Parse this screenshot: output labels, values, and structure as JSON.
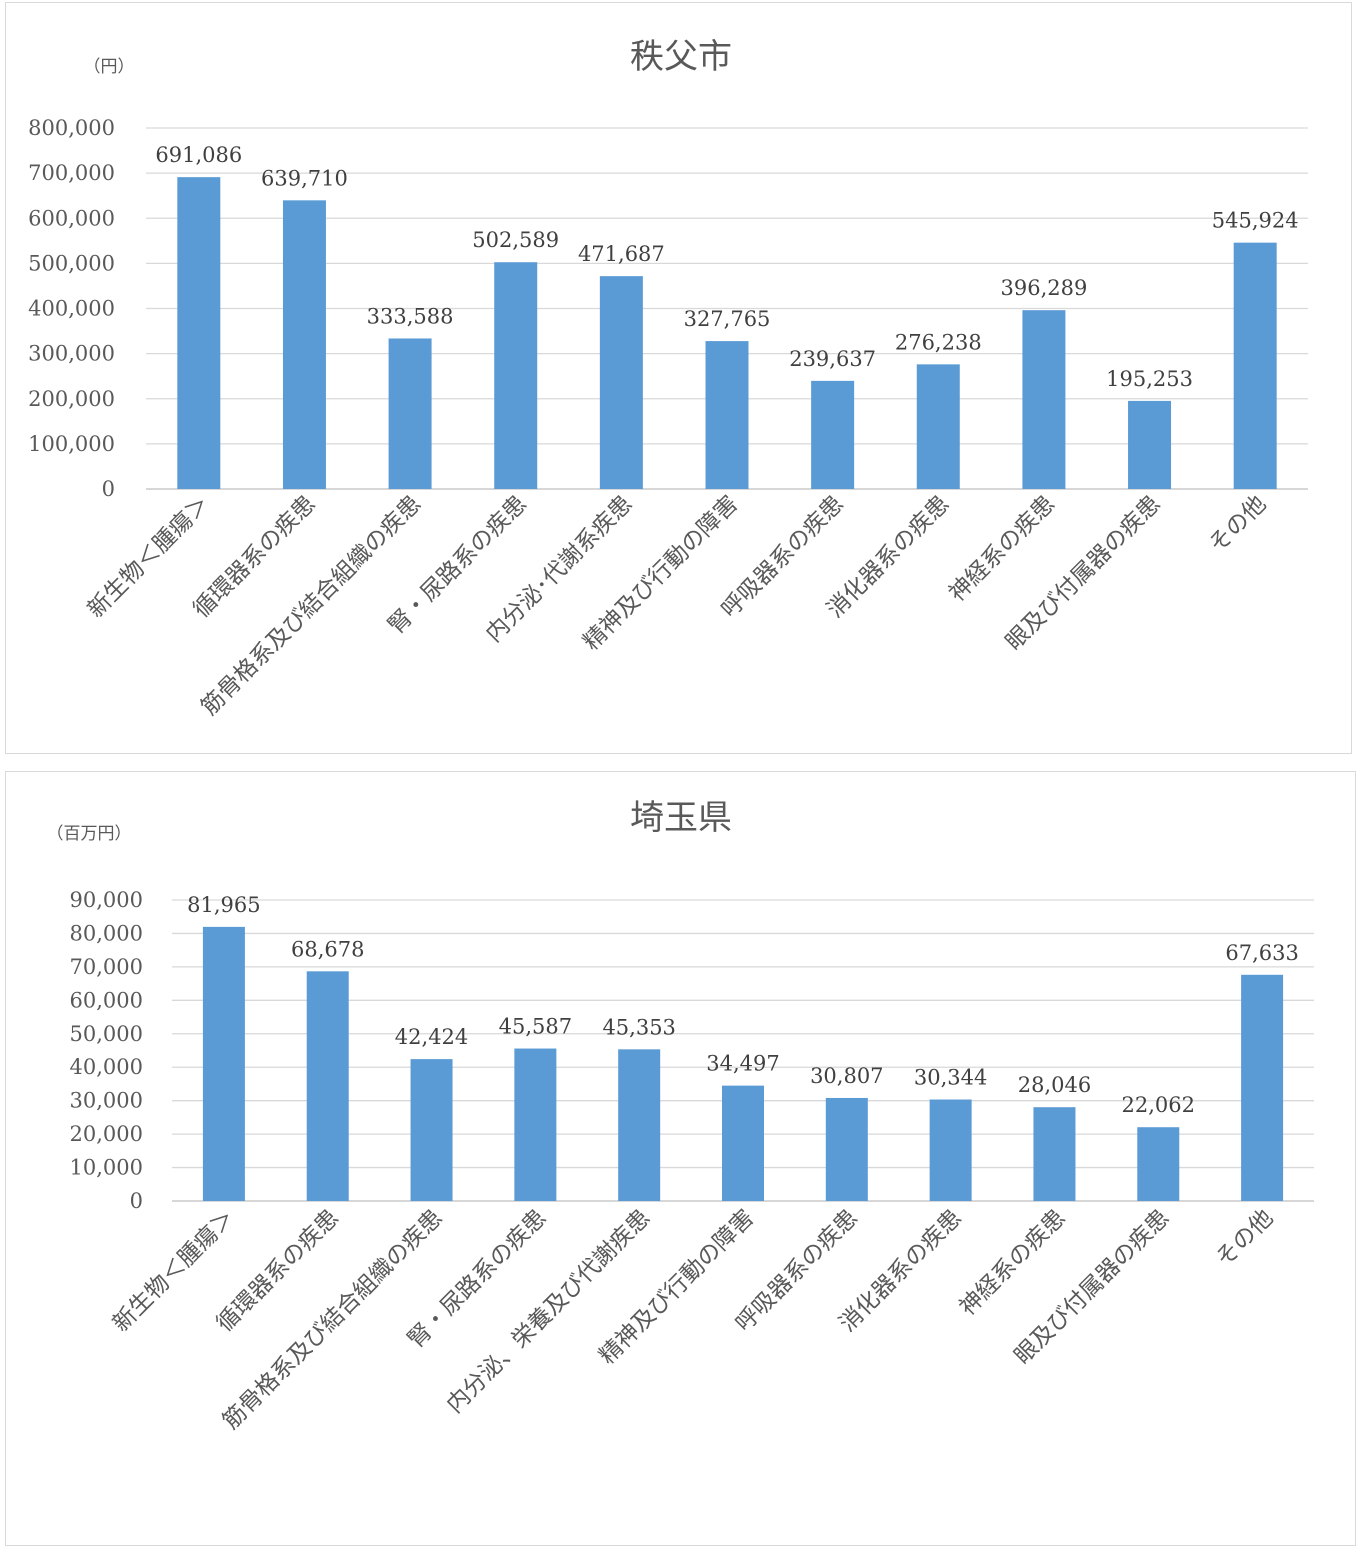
{
  "chart_data": [
    {
      "type": "bar",
      "title": "秩父市",
      "unit_label": "（円）",
      "categories": [
        "新生物＜腫瘍＞",
        "循環器系の疾患",
        "筋骨格系及び結合組織の疾患",
        "腎・尿路系の疾患",
        "内分泌･代謝系疾患",
        "精神及び行動の障害",
        "呼吸器系の疾患",
        "消化器系の疾患",
        "神経系の疾患",
        "眼及び付属器の疾患",
        "その他"
      ],
      "values": [
        691086,
        639710,
        333588,
        502589,
        471687,
        327765,
        239637,
        276238,
        396289,
        195253,
        545924
      ],
      "value_labels": [
        "691,086",
        "639,710",
        "333,588",
        "502,589",
        "471,687",
        "327,765",
        "239,637",
        "276,238",
        "396,289",
        "195,253",
        "545,924"
      ],
      "yticks": [
        "0",
        "100,000",
        "200,000",
        "300,000",
        "400,000",
        "500,000",
        "600,000",
        "700,000",
        "800,000"
      ],
      "ylim": [
        0,
        800000
      ],
      "grid": true,
      "bar_color": "#5b9bd5"
    },
    {
      "type": "bar",
      "title": "埼玉県",
      "unit_label": "（百万円）",
      "categories": [
        "新生物＜腫瘍＞",
        "循環器系の疾患",
        "筋骨格系及び結合組織の疾患",
        "腎・尿路系の疾患",
        "内分泌、栄養及び代謝疾患",
        "精神及び行動の障害",
        "呼吸器系の疾患",
        "消化器系の疾患",
        "神経系の疾患",
        "眼及び付属器の疾患",
        "その他"
      ],
      "values": [
        81965,
        68678,
        42424,
        45587,
        45353,
        34497,
        30807,
        30344,
        28046,
        22062,
        67633
      ],
      "value_labels": [
        "81,965",
        "68,678",
        "42,424",
        "45,587",
        "45,353",
        "34,497",
        "30,807",
        "30,344",
        "28,046",
        "22,062",
        "67,633"
      ],
      "yticks": [
        "0",
        "10,000",
        "20,000",
        "30,000",
        "40,000",
        "50,000",
        "60,000",
        "70,000",
        "80,000",
        "90,000"
      ],
      "ylim": [
        0,
        90000
      ],
      "grid": true,
      "bar_color": "#5b9bd5"
    }
  ]
}
